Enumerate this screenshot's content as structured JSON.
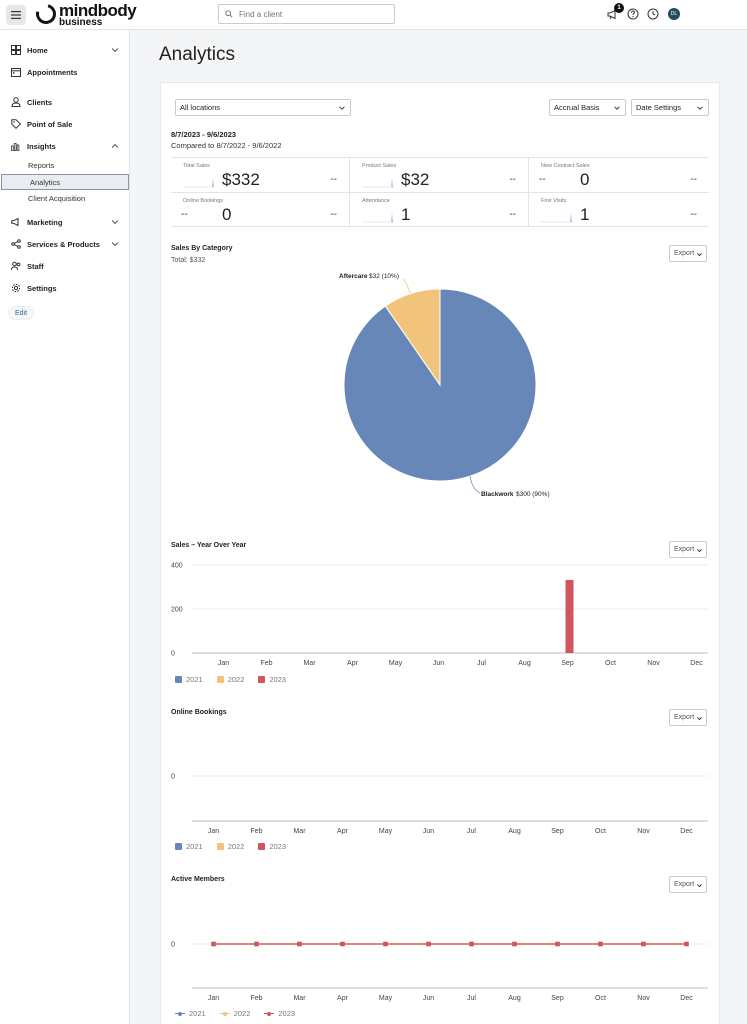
{
  "topbar": {
    "logo_line1": "mindbody",
    "logo_line2": "business",
    "search_placeholder": "Find a client",
    "notification_count": "1",
    "avatar_initials": "DL"
  },
  "sidebar": {
    "items": [
      {
        "label": "Home",
        "icon": "home-grid-icon",
        "chevron": "down"
      },
      {
        "label": "Appointments",
        "icon": "calendar-icon"
      },
      {
        "label": "Clients",
        "icon": "person-icon"
      },
      {
        "label": "Point of Sale",
        "icon": "tag-icon"
      },
      {
        "label": "Insights",
        "icon": "bar-chart-icon",
        "chevron": "up"
      },
      {
        "label": "Marketing",
        "icon": "megaphone-icon",
        "chevron": "down"
      },
      {
        "label": "Services & Products",
        "icon": "share-nodes-icon",
        "chevron": "down"
      },
      {
        "label": "Staff",
        "icon": "people-icon"
      },
      {
        "label": "Settings",
        "icon": "gear-icon"
      }
    ],
    "insights_subitems": [
      "Reports",
      "Analytics",
      "Client Acquisition"
    ],
    "active_subitem": "Analytics",
    "edit_label": "Edit"
  },
  "page": {
    "title": "Analytics"
  },
  "filters": {
    "location": "All locations",
    "basis": "Accrual Basis",
    "date_settings": "Date Settings"
  },
  "date": {
    "range": "8/7/2023 - 9/6/2023",
    "compared": "Compared to 8/7/2022 - 9/6/2022"
  },
  "kpis": [
    {
      "label": "Total Sales",
      "value": "$332",
      "change": "--",
      "prefix": ""
    },
    {
      "label": "Product Sales",
      "value": "$32",
      "change": "--",
      "prefix": ""
    },
    {
      "label": "New Contract Sales",
      "value": "0",
      "change": "--",
      "prefix": "--"
    },
    {
      "label": "Online Bookings",
      "value": "0",
      "change": "--",
      "prefix": "--"
    },
    {
      "label": "Attendance",
      "value": "1",
      "change": "--",
      "prefix": ""
    },
    {
      "label": "First Visits",
      "value": "1",
      "change": "--",
      "prefix": ""
    }
  ],
  "colors": {
    "blue_2021": "#6787b8",
    "yellow_2022": "#f2c47b",
    "red_2023": "#d2555e",
    "spark": "#a9c4e4"
  },
  "export_label": "Export",
  "chart_data": [
    {
      "type": "pie",
      "title": "Sales By Category",
      "subtitle": "Total: $332",
      "slices": [
        {
          "name": "Blackwork",
          "value": 300,
          "percent": 90,
          "value_label": "$300 (90%)",
          "color": "#6787b8"
        },
        {
          "name": "Aftercare",
          "value": 32,
          "percent": 10,
          "value_label": "$32 (10%)",
          "color": "#f2c47b"
        }
      ]
    },
    {
      "type": "bar",
      "title": "Sales – Year Over Year",
      "categories": [
        "Jan",
        "Feb",
        "Mar",
        "Apr",
        "May",
        "Jun",
        "Jul",
        "Aug",
        "Sep",
        "Oct",
        "Nov",
        "Dec"
      ],
      "ylim": [
        0,
        400
      ],
      "yticks": [
        "400",
        "200",
        "0"
      ],
      "series": [
        {
          "name": "2021",
          "color": "#6787b8",
          "values": [
            0,
            0,
            0,
            0,
            0,
            0,
            0,
            0,
            0,
            0,
            0,
            0
          ]
        },
        {
          "name": "2022",
          "color": "#f2c47b",
          "values": [
            0,
            0,
            0,
            0,
            0,
            0,
            0,
            0,
            0,
            0,
            0,
            0
          ]
        },
        {
          "name": "2023",
          "color": "#d2555e",
          "values": [
            0,
            0,
            0,
            0,
            0,
            0,
            0,
            0,
            332,
            0,
            0,
            0
          ]
        }
      ]
    },
    {
      "type": "bar",
      "title": "Online Bookings",
      "categories": [
        "Jan",
        "Feb",
        "Mar",
        "Apr",
        "May",
        "Jun",
        "Jul",
        "Aug",
        "Sep",
        "Oct",
        "Nov",
        "Dec"
      ],
      "yticks": [
        "0"
      ],
      "series": [
        {
          "name": "2021",
          "color": "#6787b8",
          "values": [
            0,
            0,
            0,
            0,
            0,
            0,
            0,
            0,
            0,
            0,
            0,
            0
          ]
        },
        {
          "name": "2022",
          "color": "#f2c47b",
          "values": [
            0,
            0,
            0,
            0,
            0,
            0,
            0,
            0,
            0,
            0,
            0,
            0
          ]
        },
        {
          "name": "2023",
          "color": "#d2555e",
          "values": [
            0,
            0,
            0,
            0,
            0,
            0,
            0,
            0,
            0,
            0,
            0,
            0
          ]
        }
      ]
    },
    {
      "type": "line",
      "title": "Active Members",
      "categories": [
        "Jan",
        "Feb",
        "Mar",
        "Apr",
        "May",
        "Jun",
        "Jul",
        "Aug",
        "Sep",
        "Oct",
        "Nov",
        "Dec"
      ],
      "yticks": [
        "0"
      ],
      "series": [
        {
          "name": "2021",
          "color": "#6787b8",
          "values": [
            0,
            0,
            0,
            0,
            0,
            0,
            0,
            0,
            0,
            0,
            0,
            0
          ]
        },
        {
          "name": "2022",
          "color": "#f2c47b",
          "values": [
            0,
            0,
            0,
            0,
            0,
            0,
            0,
            0,
            0,
            0,
            0,
            0
          ]
        },
        {
          "name": "2023",
          "color": "#d2555e",
          "values": [
            0,
            0,
            0,
            0,
            0,
            0,
            0,
            0,
            0,
            0,
            0,
            0
          ]
        }
      ]
    }
  ]
}
